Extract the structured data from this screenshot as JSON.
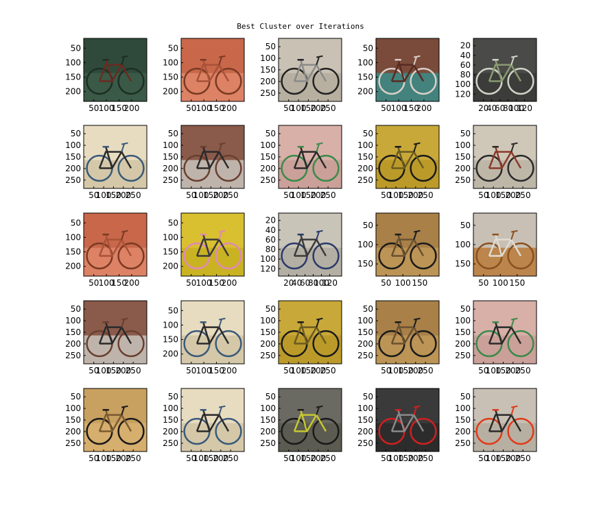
{
  "figure": {
    "title": "Best Cluster over Iterations"
  },
  "chart_data": {
    "type": "image_grid",
    "title": "Best Cluster over Iterations",
    "rows": 5,
    "cols": 5,
    "panels": [
      {
        "subject": "track cyclist on velodrome",
        "palette": [
          "#2f4a3a",
          "#3d5c4a",
          "#1d2f25",
          "#6b2a20"
        ],
        "yticks": [
          "50",
          "100",
          "150",
          "200"
        ],
        "xticks": [
          "50",
          "100",
          "150",
          "200"
        ]
      },
      {
        "subject": "bike frame close-up orange",
        "palette": [
          "#c8674a",
          "#e0876a",
          "#7a3a22",
          "#a85238"
        ],
        "yticks": [
          "50",
          "100",
          "150",
          "200"
        ],
        "xticks": [
          "50",
          "100",
          "150",
          "200"
        ]
      },
      {
        "subject": "road cyclists racing",
        "palette": [
          "#c9c2b4",
          "#b4ad9e",
          "#222222",
          "#8a8a8a"
        ],
        "yticks": [
          "50",
          "100",
          "150",
          "200",
          "250"
        ],
        "xticks": [
          "50",
          "100",
          "150",
          "200",
          "250"
        ]
      },
      {
        "subject": "track cyclist close-up",
        "palette": [
          "#7a4b3a",
          "#3a8c8a",
          "#d8d0c8",
          "#5a2a20"
        ],
        "yticks": [
          "50",
          "100",
          "150",
          "200"
        ],
        "xticks": [
          "50",
          "100",
          "150",
          "200"
        ]
      },
      {
        "subject": "road surface snow",
        "palette": [
          "#4a4a48",
          "#3a3a38",
          "#d0d4c8",
          "#8a9a70"
        ],
        "yticks": [
          "20",
          "40",
          "60",
          "80",
          "100",
          "120"
        ],
        "xticks": [
          "20",
          "40",
          "60",
          "80",
          "100",
          "120"
        ]
      },
      {
        "subject": "touring bike with bag",
        "palette": [
          "#e8dcc0",
          "#d0c4a4",
          "#3a5a7a",
          "#2a2a2a"
        ],
        "yticks": [
          "50",
          "100",
          "150",
          "200",
          "250"
        ],
        "xticks": [
          "50",
          "100",
          "150",
          "200",
          "250"
        ]
      },
      {
        "subject": "silver road bike brick wall",
        "palette": [
          "#8a5a4a",
          "#c8c4bc",
          "#6a4030",
          "#2a2a2a"
        ],
        "yticks": [
          "50",
          "100",
          "150",
          "200",
          "250"
        ],
        "xticks": [
          "50",
          "100",
          "150",
          "200",
          "250"
        ]
      },
      {
        "subject": "green road bike pink wall",
        "palette": [
          "#d8b0a8",
          "#c89e96",
          "#3a8a4a",
          "#2a2a2a"
        ],
        "yticks": [
          "50",
          "100",
          "150",
          "200",
          "250"
        ],
        "xticks": [
          "50",
          "100",
          "150",
          "200",
          "250"
        ]
      },
      {
        "subject": "black mountain bike yellow wall",
        "palette": [
          "#c8a838",
          "#b89828",
          "#1a1a1a",
          "#6a5a20"
        ],
        "yticks": [
          "50",
          "100",
          "150",
          "200",
          "250"
        ],
        "xticks": [
          "50",
          "100",
          "150",
          "200",
          "250"
        ]
      },
      {
        "subject": "road cyclist legs",
        "palette": [
          "#cfc8b8",
          "#bbb4a4",
          "#2a2a2a",
          "#8a3a2a"
        ],
        "yticks": [
          "50",
          "100",
          "150",
          "200",
          "250"
        ],
        "xticks": [
          "50",
          "100",
          "150",
          "200",
          "250"
        ]
      },
      {
        "subject": "bike frame close-up orange",
        "palette": [
          "#c8674a",
          "#e0876a",
          "#7a3a22",
          "#a85238"
        ],
        "yticks": [
          "50",
          "100",
          "150",
          "200"
        ],
        "xticks": [
          "50",
          "100",
          "150",
          "200"
        ]
      },
      {
        "subject": "pink bike yellow wall",
        "palette": [
          "#d8c030",
          "#c8b020",
          "#e088b8",
          "#3a3a3a"
        ],
        "yticks": [
          "50",
          "100",
          "150",
          "200"
        ],
        "xticks": [
          "50",
          "100",
          "150",
          "200"
        ]
      },
      {
        "subject": "wheel close-up blue frame",
        "palette": [
          "#c8c4b8",
          "#b0aca0",
          "#2a3a6a",
          "#3a3a3a"
        ],
        "yticks": [
          "20",
          "40",
          "60",
          "80",
          "100",
          "120"
        ],
        "xticks": [
          "20",
          "40",
          "60",
          "80",
          "100",
          "120"
        ]
      },
      {
        "subject": "black bike tan wall",
        "palette": [
          "#a88048",
          "#c09858",
          "#1a1a1a",
          "#6a5030"
        ],
        "yticks": [
          "50",
          "100",
          "150"
        ],
        "xticks": [
          "50",
          "100",
          "150"
        ]
      },
      {
        "subject": "orange bike snow",
        "palette": [
          "#c8c0b4",
          "#b87a3a",
          "#8a5020",
          "#e0dcd4"
        ],
        "yticks": [
          "50",
          "100",
          "150"
        ],
        "xticks": [
          "50",
          "100",
          "150"
        ]
      },
      {
        "subject": "silver road bike brick wall",
        "palette": [
          "#8a5a4a",
          "#c8c4bc",
          "#6a4030",
          "#2a2a2a"
        ],
        "yticks": [
          "50",
          "100",
          "150",
          "200",
          "250"
        ],
        "xticks": [
          "50",
          "100",
          "150",
          "200",
          "250"
        ]
      },
      {
        "subject": "touring bike with bag",
        "palette": [
          "#e8dcc0",
          "#d0c4a4",
          "#3a5a7a",
          "#2a2a2a"
        ],
        "yticks": [
          "50",
          "100",
          "150",
          "200"
        ],
        "xticks": [
          "50",
          "100",
          "150",
          "200"
        ]
      },
      {
        "subject": "black mountain bike yellow wall",
        "palette": [
          "#c8a838",
          "#b89828",
          "#1a1a1a",
          "#6a5a20"
        ],
        "yticks": [
          "50",
          "100",
          "150",
          "200",
          "250"
        ],
        "xticks": [
          "50",
          "100",
          "150",
          "200",
          "250"
        ]
      },
      {
        "subject": "black bike tan wall",
        "palette": [
          "#a88048",
          "#c09858",
          "#1a1a1a",
          "#6a5030"
        ],
        "yticks": [
          "50",
          "100",
          "150",
          "200",
          "250"
        ],
        "xticks": [
          "50",
          "100",
          "150",
          "200",
          "250"
        ]
      },
      {
        "subject": "green road bike pink wall",
        "palette": [
          "#d8b0a8",
          "#c89e96",
          "#3a8a4a",
          "#2a2a2a"
        ],
        "yticks": [
          "50",
          "100",
          "150",
          "200",
          "250"
        ],
        "xticks": [
          "50",
          "100",
          "150",
          "200",
          "250"
        ]
      },
      {
        "subject": "black road bike tan wall",
        "palette": [
          "#c8a060",
          "#d8b070",
          "#1a1a1a",
          "#7a5a30"
        ],
        "yticks": [
          "50",
          "100",
          "150",
          "200",
          "250"
        ],
        "xticks": [
          "50",
          "100",
          "150",
          "200",
          "250"
        ]
      },
      {
        "subject": "touring bike with bag",
        "palette": [
          "#e8dcc0",
          "#d0c4a4",
          "#3a5a7a",
          "#2a2a2a"
        ],
        "yticks": [
          "50",
          "100",
          "150",
          "200",
          "250"
        ],
        "xticks": [
          "50",
          "100",
          "150",
          "200",
          "250"
        ]
      },
      {
        "subject": "black hybrid bike grey wall",
        "palette": [
          "#6a6a62",
          "#58584f",
          "#1a1a1a",
          "#c8c830"
        ],
        "yticks": [
          "50",
          "100",
          "150",
          "200",
          "250"
        ],
        "xticks": [
          "50",
          "100",
          "150",
          "200",
          "250"
        ]
      },
      {
        "subject": "red bikes parked",
        "palette": [
          "#3a3a3a",
          "#2a2a2a",
          "#d02020",
          "#8a8a8a"
        ],
        "yticks": [
          "50",
          "100",
          "150",
          "200",
          "250"
        ],
        "xticks": [
          "50",
          "100",
          "150",
          "200",
          "250"
        ]
      },
      {
        "subject": "red full-suspension bike",
        "palette": [
          "#c8c0b4",
          "#b4ac9e",
          "#e03a1a",
          "#2a2a2a"
        ],
        "yticks": [
          "50",
          "100",
          "150",
          "200",
          "250"
        ],
        "xticks": [
          "50",
          "100",
          "150",
          "200",
          "250"
        ]
      }
    ]
  }
}
